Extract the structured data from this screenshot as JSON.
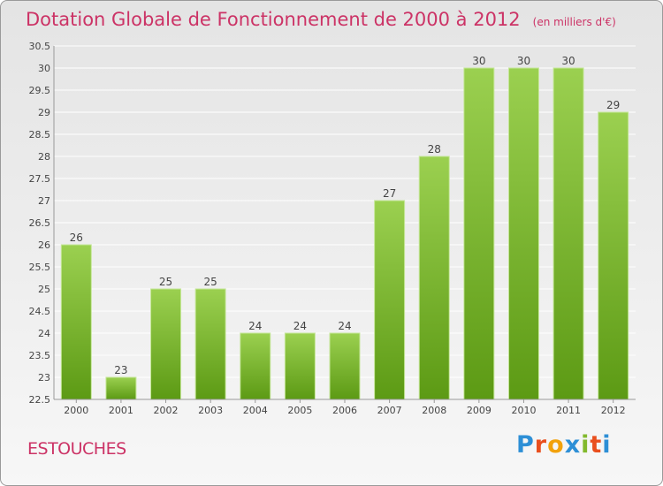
{
  "header": {
    "title": "Dotation Globale de Fonctionnement de 2000 à 2012",
    "subtitle": "(en milliers d'€)"
  },
  "footer": {
    "commune": "ESTOUCHES",
    "logo_letters": [
      "P",
      "r",
      "o",
      "x",
      "i",
      "t",
      "i"
    ],
    "logo_colors": [
      "#2d8fd6",
      "#e94f1e",
      "#f2a20c",
      "#2d8fd6",
      "#82b92c",
      "#e94f1e",
      "#2d8fd6"
    ]
  },
  "colors": {
    "title": "#cc3366",
    "bar_top": "#9bd050",
    "bar_bottom": "#5c9a14",
    "bar_edge": "#c6e79a",
    "grid": "#ffffff",
    "axis": "#999999"
  },
  "chart_data": {
    "type": "bar",
    "title": "Dotation Globale de Fonctionnement de 2000 à 2012",
    "subtitle": "(en milliers d'€)",
    "categories": [
      "2000",
      "2001",
      "2002",
      "2003",
      "2004",
      "2005",
      "2006",
      "2007",
      "2008",
      "2009",
      "2010",
      "2011",
      "2012"
    ],
    "values": [
      26,
      23,
      25,
      25,
      24,
      24,
      24,
      27,
      28,
      30,
      30,
      30,
      29
    ],
    "ylim": [
      22.5,
      30.5
    ],
    "yticks": [
      "22.5",
      "23",
      "23.5",
      "24",
      "24.5",
      "25",
      "25.5",
      "26",
      "26.5",
      "27",
      "27.5",
      "28",
      "28.5",
      "29",
      "29.5",
      "30",
      "30.5"
    ],
    "grid": true,
    "xlabel": "",
    "ylabel": ""
  }
}
